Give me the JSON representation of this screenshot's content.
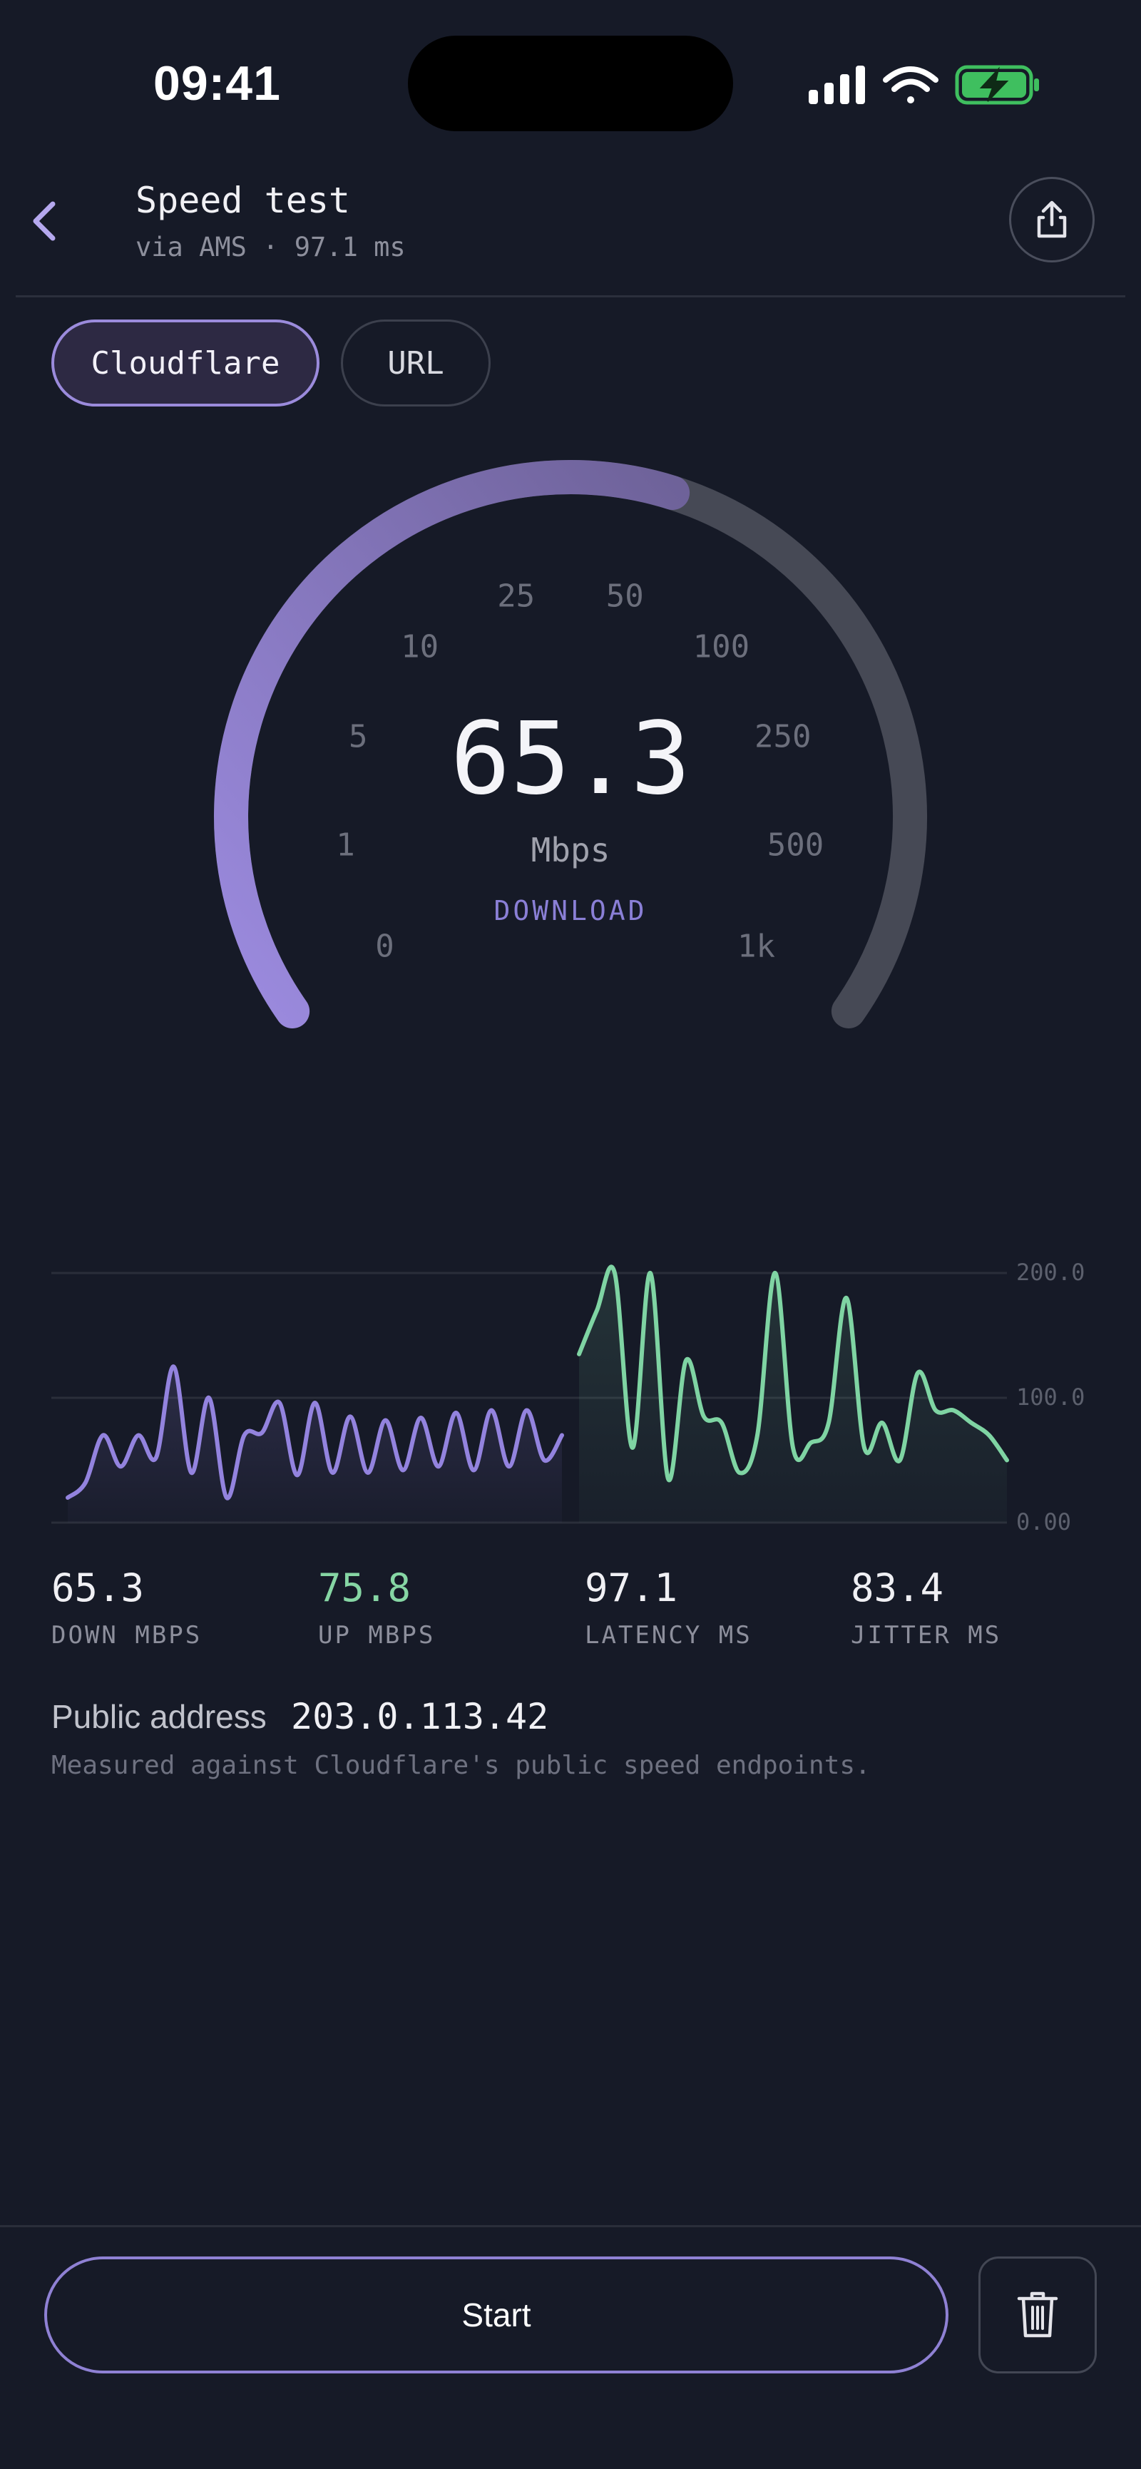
{
  "status_bar": {
    "time": "09:41"
  },
  "header": {
    "title": "Speed test",
    "subtitle": "via AMS · 97.1 ms",
    "back_icon": "chevron-left-icon",
    "share_icon": "share-icon"
  },
  "tabs": [
    {
      "label": "Cloudflare",
      "active": true
    },
    {
      "label": "URL",
      "active": false
    }
  ],
  "gauge": {
    "value": "65.3",
    "unit": "Mbps",
    "mode": "DOWNLOAD",
    "ticks": [
      "0",
      "1",
      "5",
      "10",
      "25",
      "50",
      "100",
      "250",
      "500",
      "1k"
    ],
    "progress_fraction": 0.57,
    "accent": "#9c8be0",
    "track": "#464955"
  },
  "chart_data": {
    "type": "area",
    "ylim": [
      0,
      200
    ],
    "y_ticks": [
      "200.0",
      "100.0",
      "0.00"
    ],
    "series": [
      {
        "color": "#9383de",
        "values": [
          20,
          32,
          70,
          45,
          70,
          52,
          125,
          40,
          100,
          20,
          70,
          72,
          96,
          38,
          96,
          40,
          85,
          40,
          82,
          42,
          84,
          45,
          88,
          42,
          90,
          45,
          90,
          50,
          70
        ]
      },
      {
        "color": "#7fd4a3",
        "values": [
          135,
          170,
          200,
          60,
          200,
          35,
          130,
          85,
          80,
          40,
          70,
          200,
          60,
          64,
          80,
          180,
          60,
          80,
          50,
          120,
          90,
          90,
          80,
          70,
          50
        ]
      }
    ],
    "colors": {
      "down": "#9383de",
      "up": "#7fd4a3",
      "grid": "#2a2e3a"
    }
  },
  "stats": [
    {
      "value": "65.3",
      "label": "DOWN MBPS",
      "color": "#f0f0f4"
    },
    {
      "value": "75.8",
      "label": "UP MBPS",
      "color": "#86d6a4"
    },
    {
      "value": "97.1",
      "label": "LATENCY MS",
      "color": "#f0f0f4"
    },
    {
      "value": "83.4",
      "label": "JITTER MS",
      "color": "#f0f0f4"
    }
  ],
  "address": {
    "label": "Public address",
    "value": "203.0.113.42",
    "note": "Measured against Cloudflare's public speed endpoints."
  },
  "actions": {
    "start_label": "Start",
    "trash_icon": "trash-icon"
  }
}
